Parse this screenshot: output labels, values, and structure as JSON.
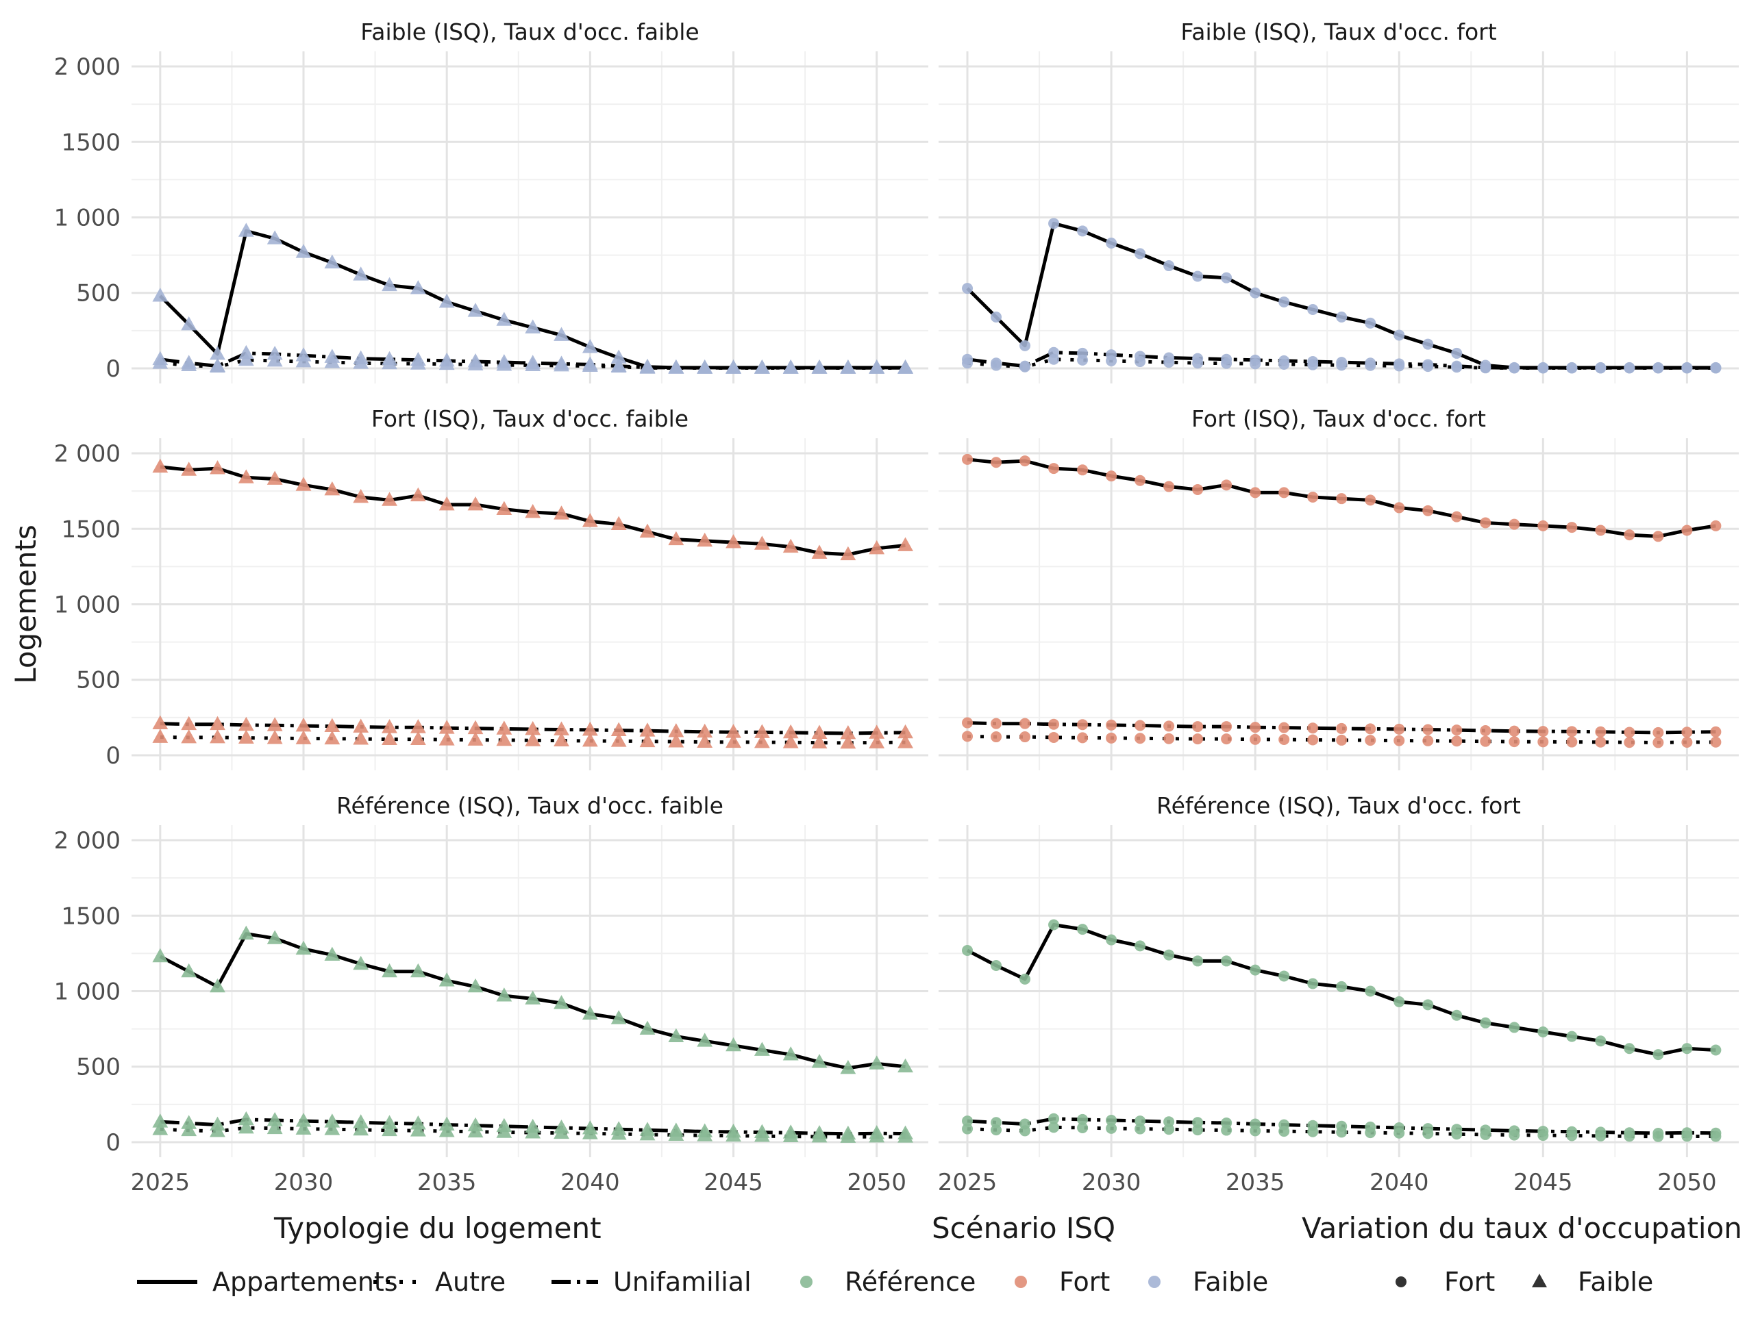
{
  "chart_data": {
    "type": "line",
    "ylabel": "Logements",
    "y_ticks": [
      0,
      500,
      1000,
      1500,
      2000
    ],
    "y_tick_labels": [
      "0",
      "500",
      "1 000",
      "1500",
      "2 000"
    ],
    "x_ticks": [
      2025,
      2030,
      2035,
      2040,
      2045,
      2050
    ],
    "x_tick_labels": [
      "2025",
      "2030",
      "2035",
      "2040",
      "2045",
      "2050"
    ],
    "xlim": [
      2024,
      2051.8
    ],
    "ylim": [
      -100,
      2100
    ],
    "years": [
      2025,
      2026,
      2027,
      2028,
      2029,
      2030,
      2031,
      2032,
      2033,
      2034,
      2035,
      2036,
      2037,
      2038,
      2039,
      2040,
      2041,
      2042,
      2043,
      2044,
      2045,
      2046,
      2047,
      2048,
      2049,
      2050,
      2051
    ],
    "colors": {
      "Référence": "#88b995",
      "Fort": "#e08d75",
      "Faible": "#a3b2d4"
    },
    "legend": {
      "linetype_title": "Typologie du logement",
      "linetype_items": [
        "Appartements",
        "Autre",
        "Unifamilial"
      ],
      "color_title": "Scénario ISQ",
      "color_items": [
        "Référence",
        "Fort",
        "Faible"
      ],
      "shape_title": "Variation du taux d'occupation",
      "shape_items": [
        "Fort",
        "Faible"
      ]
    },
    "panels": [
      {
        "title": "Faible (ISQ), Taux d'occ. faible",
        "scenario": "Faible",
        "shape": "Faible",
        "row": 0,
        "col": 0,
        "series": [
          {
            "name": "Appartements",
            "values": [
              480,
              290,
              95,
              910,
              860,
              770,
              700,
              620,
              550,
              530,
              440,
              380,
              320,
              270,
              220,
              140,
              70,
              10,
              5,
              5,
              5,
              5,
              5,
              5,
              5,
              5,
              5
            ]
          },
          {
            "name": "Unifamilial",
            "values": [
              60,
              35,
              15,
              100,
              95,
              85,
              75,
              65,
              60,
              55,
              50,
              45,
              40,
              35,
              30,
              25,
              15,
              5,
              5,
              3,
              3,
              3,
              3,
              3,
              3,
              3,
              3
            ]
          },
          {
            "name": "Autre",
            "values": [
              35,
              20,
              10,
              55,
              50,
              45,
              40,
              35,
              32,
              30,
              28,
              25,
              22,
              20,
              18,
              15,
              10,
              3,
              2,
              2,
              2,
              2,
              2,
              2,
              2,
              2,
              2
            ]
          }
        ]
      },
      {
        "title": "Faible (ISQ), Taux d'occ. fort",
        "scenario": "Faible",
        "shape": "Fort",
        "row": 0,
        "col": 1,
        "series": [
          {
            "name": "Appartements",
            "values": [
              530,
              340,
              150,
              960,
              910,
              830,
              760,
              680,
              610,
              600,
              500,
              440,
              390,
              340,
              300,
              220,
              160,
              100,
              20,
              5,
              5,
              5,
              5,
              5,
              5,
              5,
              5
            ]
          },
          {
            "name": "Unifamilial",
            "values": [
              60,
              35,
              15,
              105,
              100,
              90,
              80,
              70,
              65,
              60,
              55,
              50,
              45,
              40,
              35,
              30,
              25,
              15,
              5,
              3,
              3,
              3,
              3,
              3,
              3,
              3,
              3
            ]
          },
          {
            "name": "Autre",
            "values": [
              35,
              20,
              10,
              60,
              55,
              50,
              45,
              40,
              35,
              33,
              30,
              27,
              24,
              21,
              19,
              16,
              13,
              8,
              3,
              2,
              2,
              2,
              2,
              2,
              2,
              2,
              2
            ]
          }
        ]
      },
      {
        "title": "Fort (ISQ), Taux d'occ. faible",
        "scenario": "Fort",
        "shape": "Faible",
        "row": 1,
        "col": 0,
        "series": [
          {
            "name": "Appartements",
            "values": [
              1910,
              1890,
              1900,
              1840,
              1830,
              1790,
              1760,
              1710,
              1690,
              1720,
              1660,
              1660,
              1630,
              1610,
              1600,
              1550,
              1530,
              1480,
              1430,
              1420,
              1410,
              1400,
              1380,
              1340,
              1330,
              1370,
              1390
            ]
          },
          {
            "name": "Unifamilial",
            "values": [
              210,
              205,
              205,
              200,
              198,
              195,
              192,
              188,
              185,
              185,
              180,
              178,
              175,
              172,
              170,
              168,
              165,
              162,
              158,
              155,
              153,
              152,
              150,
              147,
              145,
              148,
              150
            ]
          },
          {
            "name": "Autre",
            "values": [
              120,
              118,
              118,
              115,
              113,
              111,
              110,
              108,
              106,
              106,
              103,
              102,
              100,
              98,
              97,
              95,
              94,
              92,
              90,
              88,
              87,
              86,
              85,
              83,
              82,
              84,
              85
            ]
          }
        ]
      },
      {
        "title": "Fort (ISQ), Taux d'occ. fort",
        "scenario": "Fort",
        "shape": "Fort",
        "row": 1,
        "col": 1,
        "series": [
          {
            "name": "Appartements",
            "values": [
              1960,
              1940,
              1950,
              1900,
              1890,
              1850,
              1820,
              1780,
              1760,
              1790,
              1740,
              1740,
              1710,
              1700,
              1690,
              1640,
              1620,
              1580,
              1540,
              1530,
              1520,
              1510,
              1490,
              1460,
              1450,
              1490,
              1520
            ]
          },
          {
            "name": "Unifamilial",
            "values": [
              215,
              210,
              210,
              205,
              203,
              200,
              197,
              193,
              190,
              190,
              185,
              183,
              180,
              177,
              175,
              173,
              170,
              167,
              163,
              160,
              158,
              157,
              155,
              152,
              150,
              153,
              155
            ]
          },
          {
            "name": "Autre",
            "values": [
              125,
              122,
              122,
              118,
              116,
              114,
              112,
              110,
              108,
              108,
              105,
              104,
              102,
              100,
              99,
              97,
              96,
              94,
              92,
              90,
              89,
              88,
              87,
              85,
              84,
              86,
              87
            ]
          }
        ]
      },
      {
        "title": "Référence (ISQ), Taux d'occ. faible",
        "scenario": "Référence",
        "shape": "Faible",
        "row": 2,
        "col": 0,
        "series": [
          {
            "name": "Appartements",
            "values": [
              1230,
              1130,
              1030,
              1380,
              1350,
              1280,
              1240,
              1180,
              1130,
              1130,
              1070,
              1030,
              970,
              950,
              920,
              850,
              820,
              750,
              700,
              670,
              640,
              610,
              580,
              530,
              490,
              520,
              500
            ]
          },
          {
            "name": "Unifamilial",
            "values": [
              135,
              125,
              115,
              150,
              145,
              140,
              135,
              130,
              125,
              122,
              115,
              110,
              105,
              100,
              95,
              90,
              85,
              80,
              75,
              70,
              68,
              65,
              62,
              58,
              55,
              58,
              56
            ]
          },
          {
            "name": "Autre",
            "values": [
              85,
              78,
              72,
              95,
              92,
              88,
              85,
              82,
              78,
              76,
              72,
              69,
              66,
              63,
              60,
              57,
              54,
              50,
              47,
              44,
              42,
              40,
              38,
              36,
              34,
              36,
              35
            ]
          }
        ]
      },
      {
        "title": "Référence (ISQ), Taux d'occ. fort",
        "scenario": "Référence",
        "shape": "Fort",
        "row": 2,
        "col": 1,
        "series": [
          {
            "name": "Appartements",
            "values": [
              1270,
              1170,
              1080,
              1440,
              1410,
              1340,
              1300,
              1240,
              1200,
              1200,
              1140,
              1100,
              1050,
              1030,
              1000,
              930,
              910,
              840,
              790,
              760,
              730,
              700,
              670,
              620,
              580,
              620,
              610
            ]
          },
          {
            "name": "Unifamilial",
            "values": [
              140,
              130,
              120,
              155,
              150,
              145,
              140,
              135,
              130,
              127,
              120,
              115,
              110,
              105,
              100,
              95,
              90,
              85,
              80,
              75,
              72,
              69,
              66,
              62,
              59,
              62,
              60
            ]
          },
          {
            "name": "Autre",
            "values": [
              88,
              81,
              75,
              98,
              95,
              91,
              88,
              85,
              81,
              79,
              75,
              72,
              69,
              66,
              63,
              60,
              57,
              53,
              50,
              47,
              45,
              43,
              41,
              39,
              37,
              39,
              38
            ]
          }
        ]
      }
    ]
  }
}
